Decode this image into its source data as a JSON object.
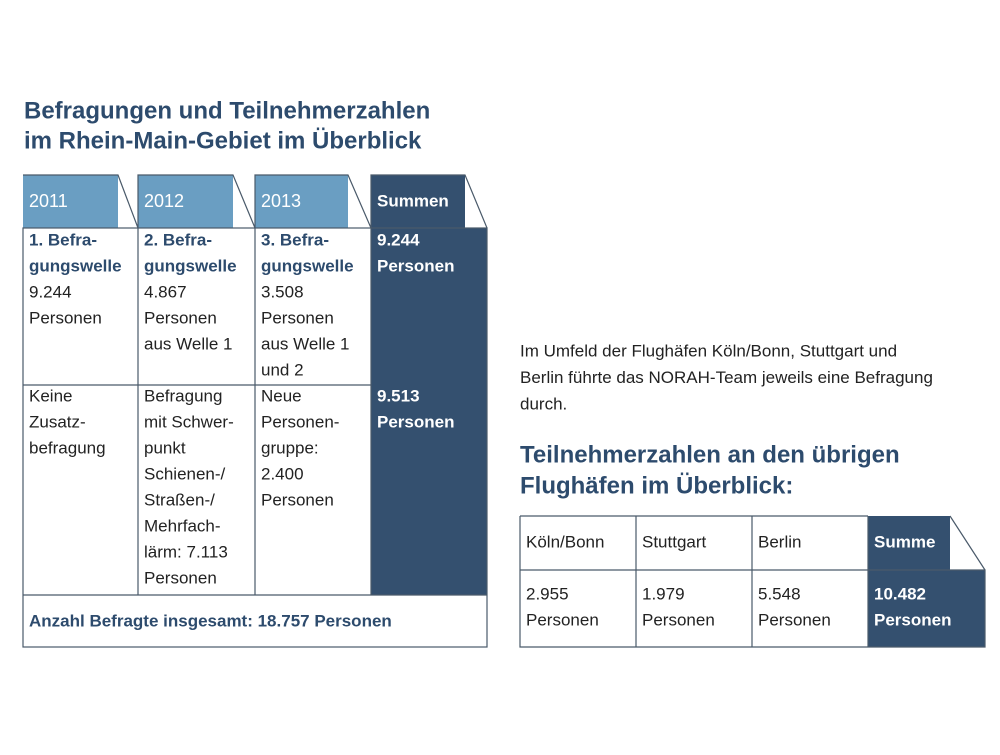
{
  "left": {
    "title": [
      "Befragungen und Teilnehmerzahlen",
      "im Rhein-Main-Gebiet im Überblick"
    ],
    "table": {
      "header": [
        "2011",
        "2012",
        "2013",
        "Summen"
      ],
      "rows": [
        [
          {
            "bold": [
              "1. Befra-",
              "gungswelle"
            ],
            "lines": [
              "9.244",
              "Personen"
            ]
          },
          {
            "bold": [
              "2. Befra-",
              "gungswelle"
            ],
            "lines": [
              "4.867",
              "Personen",
              "aus Welle 1"
            ]
          },
          {
            "bold": [
              "3. Befra-",
              "gungswelle"
            ],
            "lines": [
              "3.508",
              "Personen",
              "aus Welle 1",
              "und 2"
            ]
          },
          {
            "bold": [
              "9.244",
              "Personen"
            ]
          }
        ],
        [
          {
            "lines": [
              "Keine",
              "Zusatz-",
              "befragung"
            ]
          },
          {
            "lines": [
              "Befragung",
              "mit Schwer-",
              "punkt",
              "Schienen-/",
              "Straßen-/",
              "Mehrfach-",
              "lärm: 7.113",
              "Personen"
            ]
          },
          {
            "lines": [
              "Neue",
              "Personen-",
              "gruppe:",
              "2.400",
              "Personen"
            ]
          },
          {
            "bold": [
              "9.513",
              "Personen"
            ]
          }
        ]
      ],
      "footer": "Anzahl Befragte insgesamt: 18.757 Personen"
    }
  },
  "right": {
    "intro": [
      "Im Umfeld der Flughäfen Köln/Bonn, Stuttgart und",
      "Berlin führte das NORAH-Team jeweils eine Befragung",
      "durch."
    ],
    "title": [
      "Teilnehmerzahlen an den übrigen",
      "Flughäfen im Überblick:"
    ],
    "table": {
      "header": [
        "Köln/Bonn",
        "Stuttgart",
        "Berlin",
        "Summe"
      ],
      "rows": [
        [
          [
            "2.955",
            "Personen"
          ],
          [
            "1.979",
            "Personen"
          ],
          [
            "5.548",
            "Personen"
          ],
          [
            "10.482",
            "Personen"
          ]
        ]
      ]
    }
  }
}
